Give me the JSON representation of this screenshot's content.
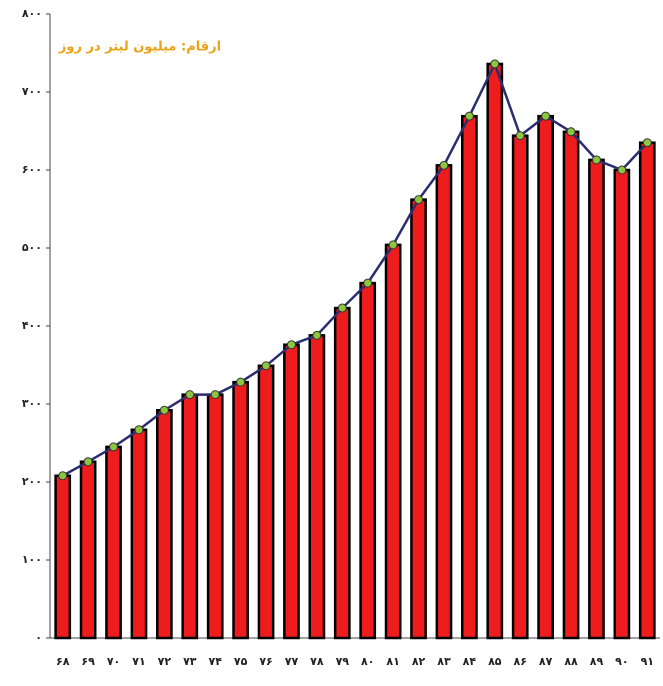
{
  "chart_data": {
    "type": "bar",
    "annotation": "ارقام: میلیون لیتر در روز",
    "categories": [
      "۶۸",
      "۶۹",
      "۷۰",
      "۷۱",
      "۷۲",
      "۷۳",
      "۷۴",
      "۷۵",
      "۷۶",
      "۷۷",
      "۷۸",
      "۷۹",
      "۸۰",
      "۸۱",
      "۸۲",
      "۸۳",
      "۸۴",
      "۸۵",
      "۸۶",
      "۸۷",
      "۸۸",
      "۸۹",
      "۹۰",
      "۹۱"
    ],
    "values": [
      208,
      226,
      245,
      267,
      292,
      312,
      312,
      328,
      349,
      376,
      388,
      423,
      455,
      504,
      562,
      606,
      669,
      736,
      644,
      669,
      649,
      613,
      600,
      635
    ],
    "color": "#ee1c1c",
    "line": true,
    "line_color": "#2b2e6e",
    "marker_color": "#8cc63f",
    "ylim": [
      0,
      800
    ],
    "yticks": [
      {
        "value": 0,
        "label": "۰"
      },
      {
        "value": 100,
        "label": "۱۰۰"
      },
      {
        "value": 200,
        "label": "۲۰۰"
      },
      {
        "value": 300,
        "label": "۳۰۰"
      },
      {
        "value": 400,
        "label": "۴۰۰"
      },
      {
        "value": 500,
        "label": "۵۰۰"
      },
      {
        "value": 600,
        "label": "۶۰۰"
      },
      {
        "value": 700,
        "label": "۷۰۰"
      },
      {
        "value": 800,
        "label": "۸۰۰"
      }
    ]
  }
}
